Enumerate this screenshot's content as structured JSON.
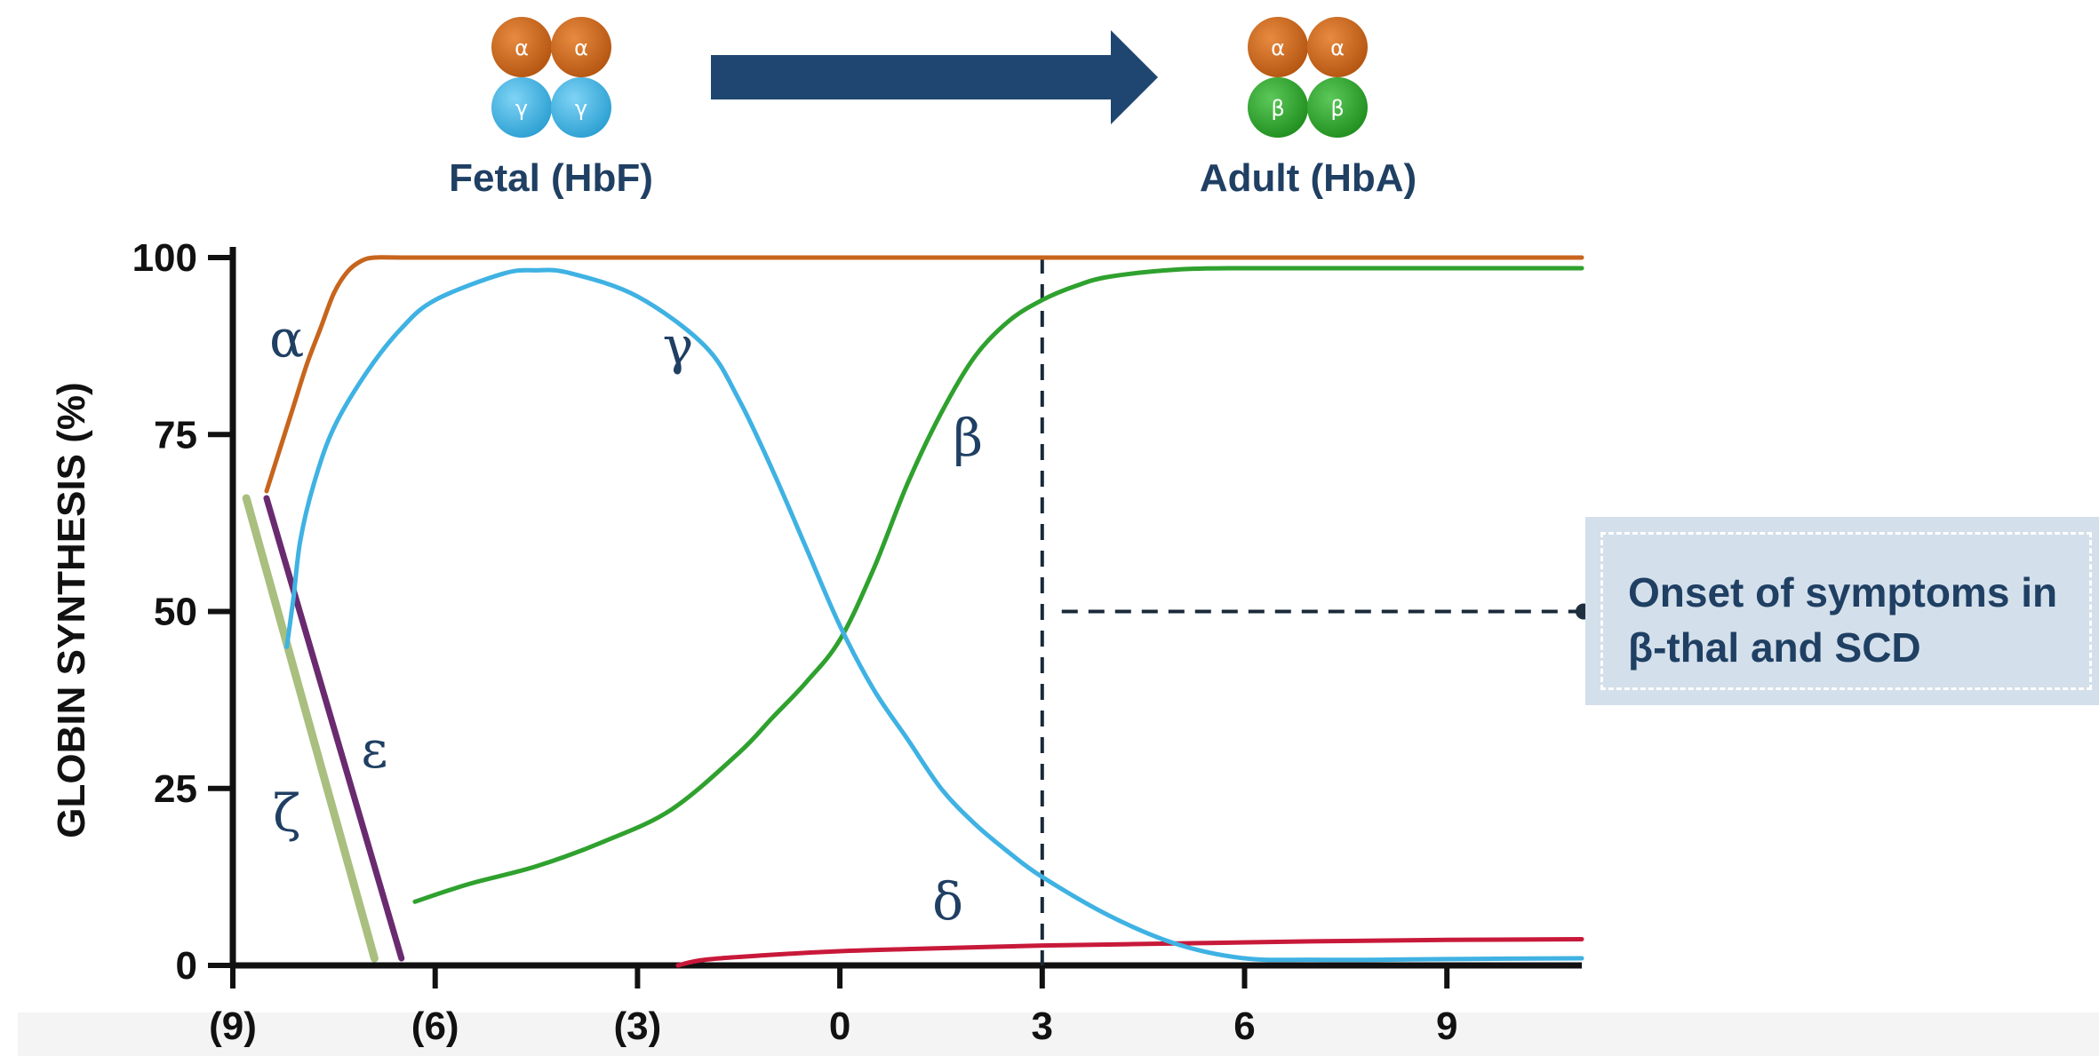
{
  "header": {
    "fetal_label": "Fetal (HbF)",
    "adult_label": "Adult (HbA)",
    "fetal_subunits": [
      "α",
      "α",
      "γ",
      "γ"
    ],
    "adult_subunits": [
      "α",
      "α",
      "β",
      "β"
    ],
    "colors": {
      "alpha_ball": "#c7651d",
      "gamma_ball": "#3fb2e3",
      "beta_ball": "#2fa12e",
      "arrow": "#1f4670"
    }
  },
  "callout": {
    "text": "Onset of symptoms in β-thal and SCD"
  },
  "chart_data": {
    "type": "line",
    "ylabel": "GLOBIN SYNTHESIS (%)",
    "xlabel": "",
    "ylim": [
      0,
      100
    ],
    "xlim": [
      -9,
      11
    ],
    "yticks": [
      0,
      25,
      50,
      75,
      100
    ],
    "ytick_labels": [
      "0",
      "25",
      "50",
      "75",
      "100"
    ],
    "xticks": [
      -9,
      -6,
      -3,
      0,
      3,
      6,
      9
    ],
    "xtick_labels": [
      "(9)",
      "(6)",
      "(3)",
      "0",
      "3",
      "6",
      "9"
    ],
    "grid": false,
    "reference_line": {
      "x": 3,
      "style": "dashed"
    },
    "series": [
      {
        "name": "α",
        "color": "#c7651d",
        "x": [
          -8.5,
          -8.3,
          -8.1,
          -7.9,
          -7.7,
          -7.5,
          -7.3,
          -7.1,
          -6.9,
          -6.5,
          -5,
          0,
          5,
          11
        ],
        "y": [
          67,
          73,
          79,
          85,
          90,
          95,
          98,
          99.5,
          100,
          100,
          100,
          100,
          100,
          100
        ]
      },
      {
        "name": "γ",
        "color": "#3fb2e3",
        "x": [
          -8.2,
          -8.1,
          -8.0,
          -7.8,
          -7.5,
          -7,
          -6.5,
          -6,
          -5,
          -4.5,
          -4,
          -3,
          -2,
          -1.5,
          -1,
          -0.5,
          0,
          0.5,
          1,
          1.5,
          2,
          2.5,
          3,
          4,
          5,
          6,
          7,
          8,
          9,
          11
        ],
        "y": [
          45,
          52,
          60,
          68,
          76,
          84,
          90,
          94,
          97.7,
          98.2,
          97.8,
          94.5,
          87.5,
          80,
          70,
          59,
          48,
          39,
          32,
          25,
          20,
          16,
          12.5,
          7,
          3,
          1,
          0.8,
          0.8,
          0.9,
          1
        ]
      },
      {
        "name": "β",
        "color": "#2fa12e",
        "x": [
          -6.3,
          -5.5,
          -4.5,
          -3.5,
          -2.5,
          -1.5,
          -1,
          -0.5,
          0,
          0.5,
          1,
          1.5,
          2,
          2.5,
          3,
          3.5,
          4,
          5,
          6,
          8,
          11
        ],
        "y": [
          9,
          11.5,
          14,
          17.5,
          22,
          30,
          35,
          40,
          46,
          56,
          68,
          78,
          86,
          91,
          94,
          96,
          97.3,
          98.3,
          98.5,
          98.5,
          98.5
        ]
      },
      {
        "name": "δ",
        "color": "#c8193a",
        "x": [
          -2.4,
          -2,
          -1,
          0,
          1,
          3,
          5,
          7,
          9,
          11
        ],
        "y": [
          0,
          0.8,
          1.5,
          2,
          2.3,
          2.8,
          3.1,
          3.4,
          3.6,
          3.7
        ]
      },
      {
        "name": "ε",
        "color": "#6a2a6f",
        "x": [
          -8.5,
          -6.5
        ],
        "y": [
          66,
          1
        ]
      },
      {
        "name": "ζ",
        "color": "#a9bf7f",
        "x": [
          -8.8,
          -6.9
        ],
        "y": [
          66,
          1
        ]
      }
    ]
  }
}
